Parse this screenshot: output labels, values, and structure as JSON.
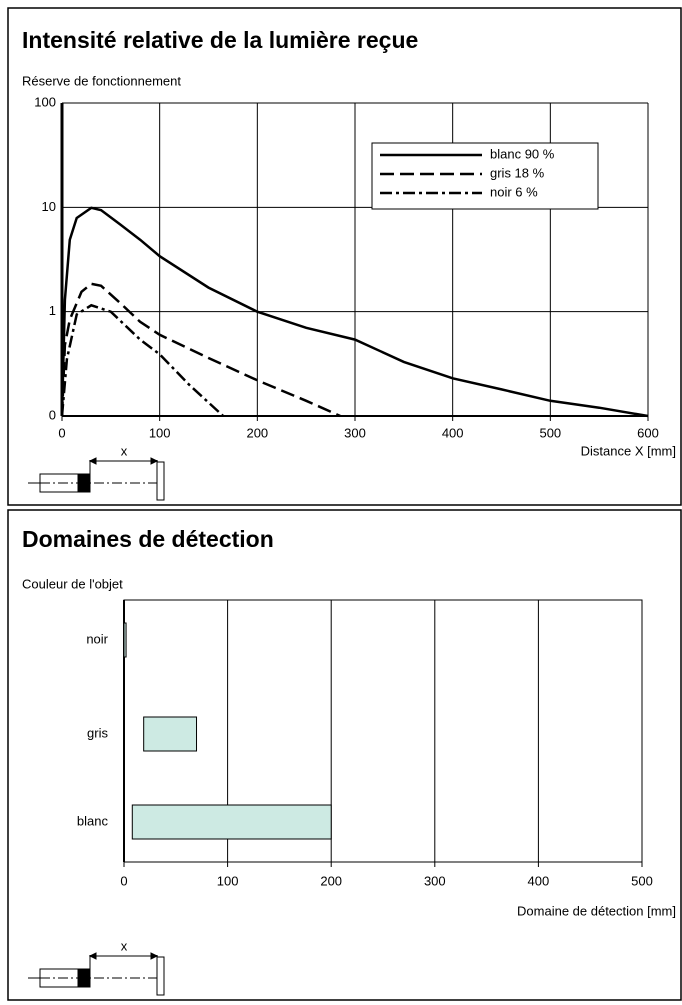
{
  "chart_data": [
    {
      "type": "line",
      "title": "Intensité relative de la lumière reçue",
      "y_label": "Réserve de fonctionnement",
      "x_label": "Distance X [mm]",
      "diagram_label": "x",
      "log_y": true,
      "grid": true,
      "legend": "upper right",
      "xlim": [
        0,
        600
      ],
      "xticks": [
        0,
        100,
        200,
        300,
        400,
        500,
        600
      ],
      "ylim": [
        0.1,
        100
      ],
      "yticks": [
        {
          "value": 0.1,
          "label": "0"
        },
        1,
        10,
        100
      ],
      "series": [
        {
          "name": "blanc 90 %",
          "color": "#000000",
          "dash": "solid",
          "x": [
            0,
            3,
            8,
            15,
            30,
            40,
            60,
            80,
            100,
            150,
            200,
            250,
            300,
            350,
            400,
            450,
            500,
            550,
            600
          ],
          "values": [
            0.1,
            1.3,
            4.9,
            7.9,
            9.9,
            9.4,
            6.8,
            4.9,
            3.4,
            1.7,
            1,
            0.7,
            0.54,
            0.33,
            0.23,
            0.18,
            0.14,
            0.12,
            0.1
          ]
        },
        {
          "name": "gris 18 %",
          "color": "#000000",
          "dash": "dashed",
          "x": [
            0,
            3,
            8,
            20,
            30,
            40,
            60,
            80,
            100,
            150,
            200,
            250,
            285
          ],
          "values": [
            0.1,
            0.48,
            0.84,
            1.55,
            1.85,
            1.77,
            1.2,
            0.8,
            0.6,
            0.36,
            0.22,
            0.14,
            0.1
          ]
        },
        {
          "name": "noir 6 %",
          "color": "#000000",
          "dash": "dashdot",
          "x": [
            0,
            5,
            15,
            30,
            50,
            80,
            100,
            130,
            165
          ],
          "values": [
            0.1,
            0.35,
            0.94,
            1.15,
            1,
            0.54,
            0.39,
            0.2,
            0.1
          ]
        }
      ]
    },
    {
      "type": "rangebar",
      "title": "Domaines de détection",
      "y_label": "Couleur de l'objet",
      "x_label": "Domaine de détection [mm]",
      "diagram_label": "x",
      "grid": true,
      "color": "#cdeae3",
      "xlim": [
        0,
        500
      ],
      "xticks": [
        0,
        100,
        200,
        300,
        400,
        500
      ],
      "categories": [
        "noir",
        "gris",
        "blanc"
      ],
      "starts": [
        0,
        19,
        8
      ],
      "ends": [
        2,
        70,
        200
      ]
    }
  ]
}
